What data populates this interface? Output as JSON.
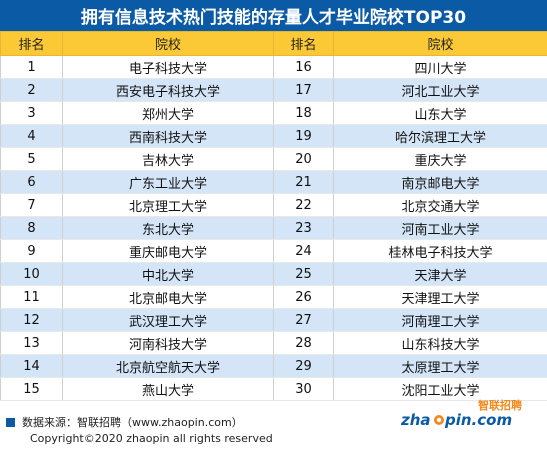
{
  "title": "拥有信息技术热门技能的存量人才毕业院校TOP30",
  "headers": {
    "rank_left": "排名",
    "school_left": "院校",
    "rank_right": "排名",
    "school_right": "院校"
  },
  "rows": [
    {
      "r1": "1",
      "s1": "电子科技大学",
      "r2": "16",
      "s2": "四川大学"
    },
    {
      "r1": "2",
      "s1": "西安电子科技大学",
      "r2": "17",
      "s2": "河北工业大学"
    },
    {
      "r1": "3",
      "s1": "郑州大学",
      "r2": "18",
      "s2": "山东大学"
    },
    {
      "r1": "4",
      "s1": "西南科技大学",
      "r2": "19",
      "s2": "哈尔滨理工大学"
    },
    {
      "r1": "5",
      "s1": "吉林大学",
      "r2": "20",
      "s2": "重庆大学"
    },
    {
      "r1": "6",
      "s1": "广东工业大学",
      "r2": "21",
      "s2": "南京邮电大学"
    },
    {
      "r1": "7",
      "s1": "北京理工大学",
      "r2": "22",
      "s2": "北京交通大学"
    },
    {
      "r1": "8",
      "s1": "东北大学",
      "r2": "23",
      "s2": "河南工业大学"
    },
    {
      "r1": "9",
      "s1": "重庆邮电大学",
      "r2": "24",
      "s2": "桂林电子科技大学"
    },
    {
      "r1": "10",
      "s1": "中北大学",
      "r2": "25",
      "s2": "天津大学"
    },
    {
      "r1": "11",
      "s1": "北京邮电大学",
      "r2": "26",
      "s2": "天津理工大学"
    },
    {
      "r1": "12",
      "s1": "武汉理工大学",
      "r2": "27",
      "s2": "河南理工大学"
    },
    {
      "r1": "13",
      "s1": "河南科技大学",
      "r2": "28",
      "s2": "山东科技大学"
    },
    {
      "r1": "14",
      "s1": "北京航空航天大学",
      "r2": "29",
      "s2": "太原理工大学"
    },
    {
      "r1": "15",
      "s1": "燕山大学",
      "r2": "30",
      "s2": "沈阳工业大学"
    }
  ],
  "footer": {
    "source": "数据来源：智联招聘（www.zhaopin.com）",
    "copyright": "Copyright©2020 zhaopin all rights reserved"
  },
  "logo": {
    "cn": "智联招聘",
    "en_left": "zha",
    "en_right": "pin.com"
  },
  "colors": {
    "title_bg": "#0b5aa5",
    "header_bg": "#fbc935",
    "stripe": "#d3e5f6",
    "logo_orange": "#f08a1d"
  }
}
